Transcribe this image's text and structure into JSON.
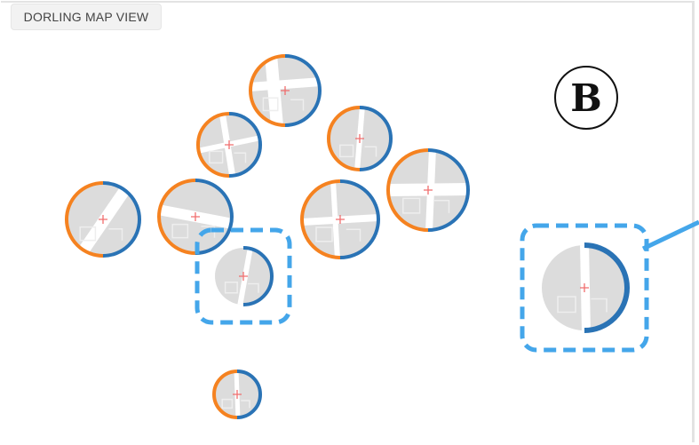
{
  "view_tab": {
    "label": "DORLING MAP VIEW"
  },
  "panel_label": "B",
  "colors": {
    "orange": "#f58220",
    "blue": "#2a73b5",
    "highlight": "#44a6ea",
    "map_fill": "#dcdcdc",
    "marker": "#f06e6e"
  },
  "nodes": [
    {
      "id": "n1",
      "orange_share": 0.5
    },
    {
      "id": "n2",
      "orange_share": 0.5
    },
    {
      "id": "n3",
      "orange_share": 0.5
    },
    {
      "id": "n4",
      "orange_share": 0.5
    },
    {
      "id": "n5",
      "orange_share": 0.5
    },
    {
      "id": "n6",
      "orange_share": 0.5
    },
    {
      "id": "n7",
      "orange_share": 0.5
    },
    {
      "id": "n8",
      "orange_share": 0.5
    },
    {
      "id": "n9",
      "orange_share": 0.0,
      "selected": true
    },
    {
      "id": "n10",
      "orange_share": 0.5
    },
    {
      "id": "n11",
      "orange_share": 0.0,
      "selected": true,
      "callout": true
    }
  ]
}
